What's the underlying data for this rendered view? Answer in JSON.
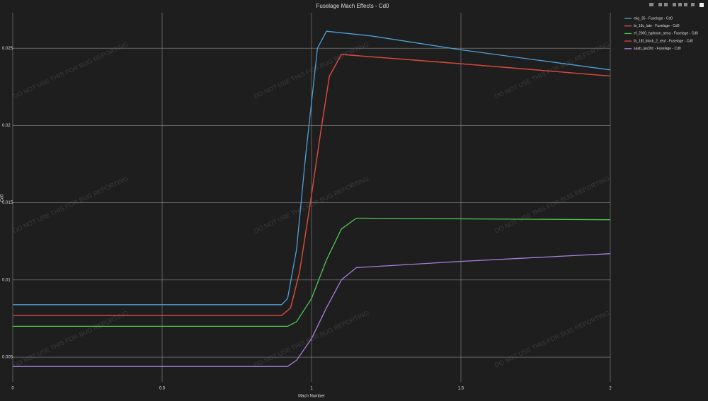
{
  "chart_data": {
    "type": "line",
    "title": "Fuselage Mach Effects - Cd0",
    "x_label": "Mach Number",
    "y_label": "Cd0",
    "watermark": "DO NOT USE THIS FOR BUG REPORTING",
    "xlim": [
      0,
      2
    ],
    "ylim": [
      0.0034,
      0.0273
    ],
    "xticks": [
      0,
      0.5,
      1,
      1.5,
      2
    ],
    "yticks": [
      0.005,
      0.01,
      0.015,
      0.02,
      0.025
    ],
    "grid": true,
    "legend": "right",
    "series": [
      {
        "name": "mig_35 - Fuselage - Cd0",
        "color": "#4f9fd8",
        "x": [
          0,
          0.9,
          0.92,
          0.95,
          0.98,
          1.0,
          1.02,
          1.05,
          1.2,
          1.5,
          2
        ],
        "values": [
          0.0084,
          0.0084,
          0.0088,
          0.012,
          0.018,
          0.0215,
          0.025,
          0.0261,
          0.0258,
          0.0249,
          0.0236
        ]
      },
      {
        "name": "fa_18c_late - Fuselage - Cd0",
        "color": "#e8553c",
        "x": [
          0,
          0.9,
          0.93,
          0.96,
          1.0,
          1.03,
          1.06,
          1.1,
          1.5,
          2
        ],
        "values": [
          0.0077,
          0.0077,
          0.0082,
          0.0105,
          0.0155,
          0.0195,
          0.0232,
          0.0246,
          0.024,
          0.0232
        ]
      },
      {
        "name": "ef_2000_typhoon_aesa - Fuselage - Cd0",
        "color": "#4fc84f",
        "x": [
          0,
          0.92,
          0.95,
          1.0,
          1.05,
          1.1,
          1.15,
          2
        ],
        "values": [
          0.007,
          0.007,
          0.0073,
          0.0088,
          0.0113,
          0.0133,
          0.014,
          0.0139
        ]
      },
      {
        "name": "fa_18f_block_2_reaf - Fuselage - Cd0",
        "color": "#d9483b",
        "x": [
          0,
          0.9,
          0.93,
          0.96,
          1.0,
          1.03,
          1.06,
          1.1,
          1.5,
          2
        ],
        "values": [
          0.0077,
          0.0077,
          0.0082,
          0.0105,
          0.0155,
          0.0195,
          0.0232,
          0.0246,
          0.024,
          0.0232
        ]
      },
      {
        "name": "saab_jas39c - Fuselage - Cd0",
        "color": "#a77fd8",
        "x": [
          0,
          0.92,
          0.95,
          1.0,
          1.05,
          1.1,
          1.15,
          1.5,
          2
        ],
        "values": [
          0.0044,
          0.0044,
          0.0048,
          0.0062,
          0.0082,
          0.01,
          0.0108,
          0.0112,
          0.0117
        ]
      }
    ]
  }
}
